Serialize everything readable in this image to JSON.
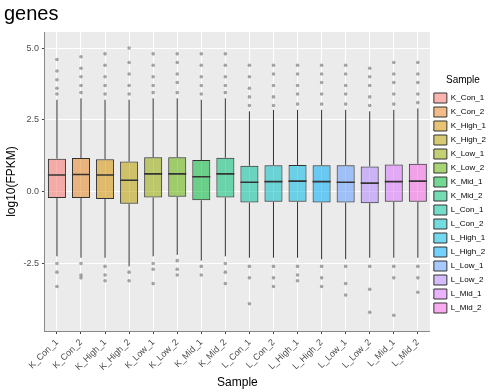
{
  "chart_data": {
    "type": "boxplot",
    "title": "genes",
    "x_label": "Sample",
    "y_label": "log10(FPKM)",
    "legend_title": "Sample",
    "legend": "right",
    "grid": true,
    "categories": [
      "K_Con_1",
      "K_Con_2",
      "K_High_1",
      "K_High_2",
      "K_Low_1",
      "K_Low_2",
      "K_Mid_1",
      "K_Mid_2",
      "L_Con_1",
      "L_Con_2",
      "L_High_1",
      "L_High_2",
      "L_Low_1",
      "L_Low_2",
      "L_Mid_1",
      "L_Mid_2"
    ],
    "series": [
      {
        "name": "K_Con_1",
        "color": "#F8766D",
        "min": -2.25,
        "q1": -0.22,
        "median": 0.58,
        "q3": 1.15,
        "max": 3.2,
        "outliers": [
          3.4,
          3.6,
          3.9,
          4.2,
          4.6,
          -2.5,
          -2.8,
          -3.3
        ]
      },
      {
        "name": "K_Con_2",
        "color": "#E88526",
        "min": -2.3,
        "q1": -0.22,
        "median": 0.6,
        "q3": 1.17,
        "max": 3.25,
        "outliers": [
          3.45,
          3.7,
          4.0,
          4.3,
          4.7,
          -2.5,
          -2.9,
          -3.0
        ]
      },
      {
        "name": "K_High_1",
        "color": "#D39200",
        "min": -2.3,
        "q1": -0.25,
        "median": 0.58,
        "q3": 1.13,
        "max": 3.2,
        "outliers": [
          3.4,
          3.7,
          4.0,
          4.4,
          4.8,
          -2.6,
          -2.9,
          -3.1
        ]
      },
      {
        "name": "K_High_2",
        "color": "#B79F00",
        "min": -2.6,
        "q1": -0.42,
        "median": 0.4,
        "q3": 1.05,
        "max": 3.2,
        "outliers": [
          3.4,
          3.7,
          4.1,
          4.5,
          5.0,
          -2.8,
          -3.1
        ]
      },
      {
        "name": "K_Low_1",
        "color": "#93AA00",
        "min": -2.25,
        "q1": -0.2,
        "median": 0.62,
        "q3": 1.2,
        "max": 3.25,
        "outliers": [
          3.45,
          3.7,
          4.0,
          4.4,
          4.8,
          -2.5,
          -2.7,
          -3.2
        ]
      },
      {
        "name": "K_Low_2",
        "color": "#5EB300",
        "min": -2.2,
        "q1": -0.18,
        "median": 0.62,
        "q3": 1.2,
        "max": 3.25,
        "outliers": [
          3.45,
          3.8,
          4.1,
          4.5,
          4.8,
          -2.4,
          -2.7,
          -2.9
        ]
      },
      {
        "name": "K_Mid_1",
        "color": "#00BA38",
        "min": -2.4,
        "q1": -0.3,
        "median": 0.52,
        "q3": 1.1,
        "max": 3.2,
        "outliers": [
          3.4,
          3.7,
          4.0,
          4.4,
          4.8,
          -2.6,
          -2.9
        ]
      },
      {
        "name": "K_Mid_2",
        "color": "#00BF74",
        "min": -2.25,
        "q1": -0.2,
        "median": 0.62,
        "q3": 1.18,
        "max": 3.25,
        "outliers": [
          3.45,
          3.7,
          4.0,
          4.4,
          4.8,
          -2.5,
          -2.8,
          -3.2
        ]
      },
      {
        "name": "L_Con_1",
        "color": "#00C19F",
        "min": -2.3,
        "q1": -0.38,
        "median": 0.33,
        "q3": 0.9,
        "max": 2.8,
        "outliers": [
          3.0,
          3.3,
          3.6,
          4.0,
          4.4,
          -2.6,
          -3.0,
          -3.9
        ]
      },
      {
        "name": "L_Con_2",
        "color": "#00BFC4",
        "min": -2.3,
        "q1": -0.35,
        "median": 0.35,
        "q3": 0.92,
        "max": 2.85,
        "outliers": [
          3.0,
          3.3,
          3.7,
          4.1,
          4.4,
          -2.6,
          -3.0,
          -3.3
        ]
      },
      {
        "name": "L_High_1",
        "color": "#00B9E3",
        "min": -2.3,
        "q1": -0.35,
        "median": 0.37,
        "q3": 0.93,
        "max": 2.85,
        "outliers": [
          3.05,
          3.4,
          3.7,
          4.1,
          4.4,
          -2.6,
          -2.9,
          -3.1
        ]
      },
      {
        "name": "L_High_2",
        "color": "#00ADFA",
        "min": -2.35,
        "q1": -0.38,
        "median": 0.35,
        "q3": 0.92,
        "max": 2.85,
        "outliers": [
          3.05,
          3.4,
          3.8,
          4.1,
          4.4,
          -2.6,
          -3.0,
          -3.3
        ]
      },
      {
        "name": "L_Low_1",
        "color": "#619CFF",
        "min": -2.35,
        "q1": -0.38,
        "median": 0.33,
        "q3": 0.92,
        "max": 2.85,
        "outliers": [
          3.05,
          3.4,
          3.7,
          4.1,
          4.4,
          -2.6,
          -3.2,
          -3.6
        ]
      },
      {
        "name": "L_Low_2",
        "color": "#AE87FF",
        "min": -2.3,
        "q1": -0.4,
        "median": 0.3,
        "q3": 0.88,
        "max": 2.8,
        "outliers": [
          3.0,
          3.3,
          3.7,
          4.0,
          4.3,
          -2.6,
          -3.4,
          -4.2
        ]
      },
      {
        "name": "L_Mid_1",
        "color": "#DB72FB",
        "min": -2.3,
        "q1": -0.35,
        "median": 0.35,
        "q3": 0.95,
        "max": 2.85,
        "outliers": [
          3.05,
          3.4,
          3.8,
          4.1,
          4.5,
          -2.6,
          -3.0,
          -4.3
        ]
      },
      {
        "name": "L_Mid_2",
        "color": "#F564E3",
        "min": -2.3,
        "q1": -0.35,
        "median": 0.37,
        "q3": 0.97,
        "max": 2.9,
        "outliers": [
          3.1,
          3.4,
          3.8,
          4.1,
          4.5,
          -2.6,
          -3.0,
          -3.5
        ]
      }
    ],
    "ylim": [
      -4.85,
      5.56
    ],
    "yticks": [
      -2.5,
      {
        "value": 0,
        "label": "0.0"
      },
      2.5,
      {
        "value": 5,
        "label": "5.0"
      }
    ]
  }
}
